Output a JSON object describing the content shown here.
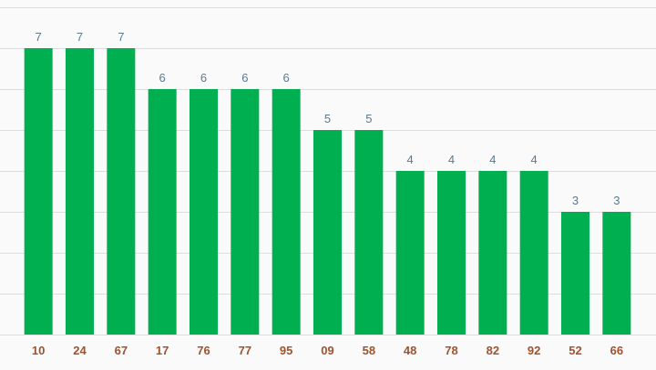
{
  "chart_data": {
    "type": "bar",
    "categories": [
      "10",
      "24",
      "67",
      "17",
      "76",
      "77",
      "95",
      "09",
      "58",
      "48",
      "78",
      "82",
      "92",
      "52",
      "66"
    ],
    "values": [
      7,
      7,
      7,
      6,
      6,
      6,
      6,
      5,
      5,
      4,
      4,
      4,
      4,
      3,
      3
    ],
    "ylim": [
      0,
      8
    ],
    "grid": true,
    "bar_color": "#00b050",
    "value_label_color": "#5b7a8c",
    "tick_label_color": "#a0522d",
    "grid_color": "#dcdcdc",
    "background": "#fafafa"
  }
}
